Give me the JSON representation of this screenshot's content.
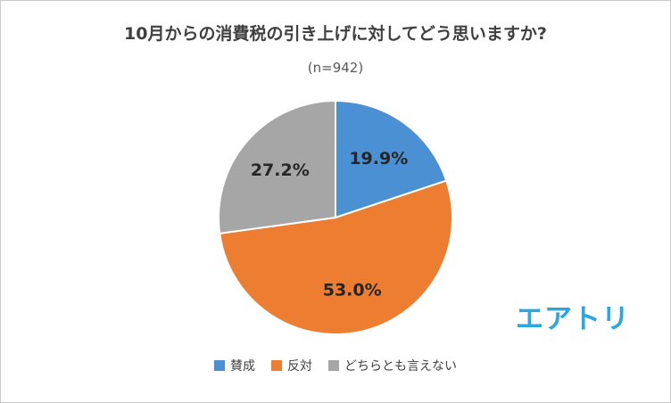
{
  "chart_data": {
    "type": "pie",
    "title": "10月からの消費税の引き上げに対してどう思いますか?",
    "subtitle": "(n=942)",
    "categories": [
      "賛成",
      "反対",
      "どちらとも言えない"
    ],
    "values": [
      19.9,
      53.0,
      27.2
    ],
    "labels": [
      "19.9%",
      "53.0%",
      "27.2%"
    ],
    "colors": [
      "#4a90d2",
      "#ed7d31",
      "#a6a6a6"
    ],
    "legend_position": "bottom",
    "start_angle_deg": 0,
    "direction": "clockwise",
    "slice_border_color": "#ffffff"
  },
  "branding": {
    "logo_text": "エアトリ",
    "logo_color": "#2aa7de"
  }
}
